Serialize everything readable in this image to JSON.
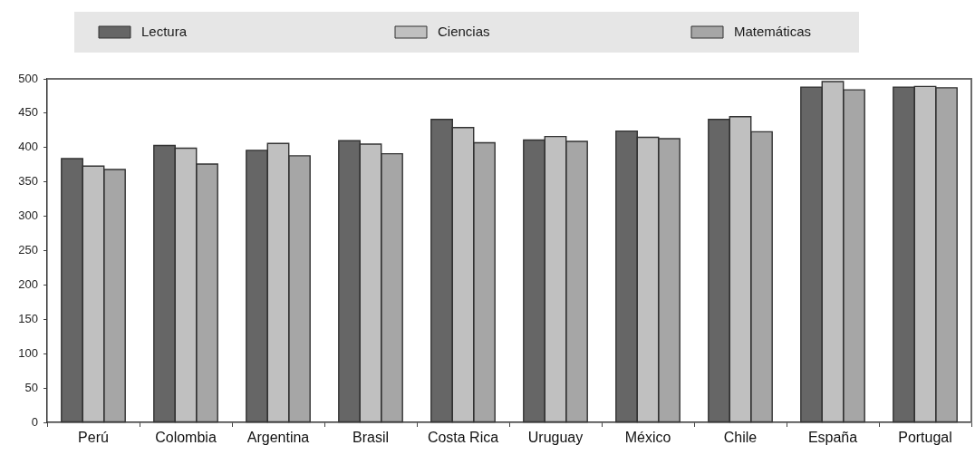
{
  "chart_data": {
    "type": "bar",
    "categories": [
      "Perú",
      "Colombia",
      "Argentina",
      "Brasil",
      "Costa Rica",
      "Uruguay",
      "México",
      "Chile",
      "España",
      "Portugal"
    ],
    "series": [
      {
        "name": "Lectura",
        "color": "#666666",
        "values": [
          384,
          403,
          396,
          410,
          441,
          411,
          424,
          441,
          488,
          488
        ]
      },
      {
        "name": "Ciencias",
        "color": "#c0c0c0",
        "values": [
          373,
          399,
          406,
          405,
          429,
          416,
          415,
          445,
          496,
          489
        ]
      },
      {
        "name": "Matemáticas",
        "color": "#a6a6a6",
        "values": [
          368,
          376,
          388,
          391,
          407,
          409,
          413,
          423,
          484,
          487
        ]
      }
    ],
    "ylim": [
      0,
      500
    ],
    "yticks": [
      0,
      50,
      100,
      150,
      200,
      250,
      300,
      350,
      400,
      450,
      500
    ],
    "grid": false,
    "legend": "top"
  }
}
